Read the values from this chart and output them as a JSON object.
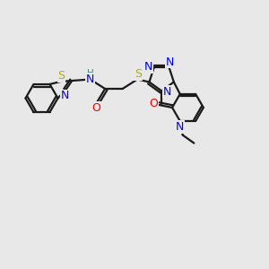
{
  "bg_color": "#e8e8e8",
  "bond_color": "#1a1a1a",
  "lw": 1.6,
  "atom_colors": {
    "N": "#0000ee",
    "S": "#bbaa00",
    "O": "#ee0000",
    "H": "#448888",
    "C": "#1a1a1a"
  },
  "fs": 8.5,
  "xlim": [
    0,
    10
  ],
  "ylim": [
    0,
    10
  ],
  "figsize": [
    3.0,
    3.0
  ],
  "dpi": 100
}
